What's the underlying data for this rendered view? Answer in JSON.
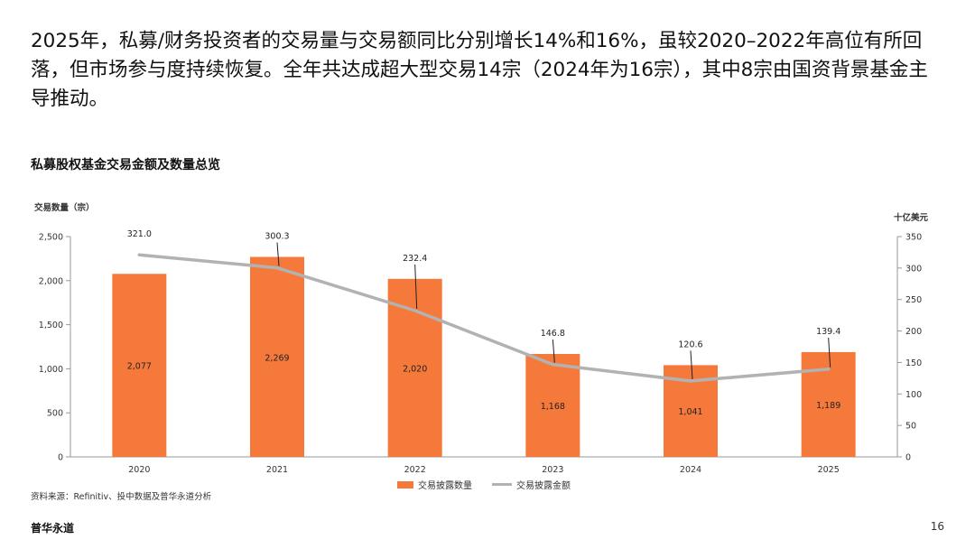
{
  "headline": "2025年，私募/财务投资者的交易量与交易额同比分别增长14%和16%，虽较2020–2022年高位有所回落，但市场参与度持续恢复。全年共达成超大型交易14宗（2024年为16宗），其中8宗由国资背景基金主导推动。",
  "chart_title": "私募股权基金交易金额及数量总览",
  "source_note": "资料来源：Refinitiv、投中数据及普华永道分析",
  "brand": "普华永道",
  "page_number": "16",
  "colors": {
    "bar": "#f5793a",
    "line": "#b2b2b2",
    "axis": "#999999"
  },
  "chart_data": {
    "type": "bar",
    "categories": [
      "2020",
      "2021",
      "2022",
      "2023",
      "2024",
      "2025"
    ],
    "y_left": {
      "label": "交易数量（宗）",
      "range": [
        0,
        2500
      ],
      "ticks": [
        0,
        500,
        1000,
        1500,
        2000,
        2500
      ],
      "tick_labels": [
        "0",
        "500",
        "1,000",
        "1,500",
        "2,000",
        "2,500"
      ]
    },
    "y_right": {
      "label": "十亿美元",
      "range": [
        0,
        350
      ],
      "ticks": [
        0,
        50,
        100,
        150,
        200,
        250,
        300,
        350
      ],
      "tick_labels": [
        "0",
        "50",
        "100",
        "150",
        "200",
        "250",
        "300",
        "350"
      ]
    },
    "series": [
      {
        "name": "交易披露数量",
        "type": "bar",
        "axis": "left",
        "values": [
          2077,
          2269,
          2020,
          1168,
          1041,
          1189
        ],
        "labels": [
          "2,077",
          "2,269",
          "2,020",
          "1,168",
          "1,041",
          "1,189"
        ]
      },
      {
        "name": "交易披露金额",
        "type": "line",
        "axis": "right",
        "values": [
          321.0,
          300.3,
          232.4,
          146.8,
          120.6,
          139.4
        ],
        "labels": [
          "321.0",
          "300.3",
          "232.4",
          "146.8",
          "120.6",
          "139.4"
        ]
      }
    ],
    "grid": false,
    "legend": "bottom"
  }
}
